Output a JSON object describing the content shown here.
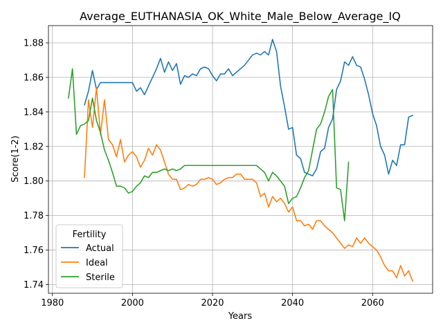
{
  "chart_data": {
    "type": "line",
    "title": "Average_EUTHANASIA_OK_White_Male_Below_Average_IQ",
    "xlabel": "Years",
    "ylabel": "Score(1-2)",
    "xlim": [
      1979,
      2075
    ],
    "ylim": [
      1.735,
      1.89
    ],
    "x_ticks": [
      1980,
      2000,
      2020,
      2040,
      2060
    ],
    "y_ticks": [
      1.74,
      1.76,
      1.78,
      1.8,
      1.82,
      1.84,
      1.86,
      1.88
    ],
    "y_tick_labels": [
      "1.74",
      "1.76",
      "1.78",
      "1.80",
      "1.82",
      "1.84",
      "1.86",
      "1.88"
    ],
    "grid": true,
    "legend": {
      "title": "Fertility",
      "placement": "lower-left"
    },
    "series": [
      {
        "name": "Actual",
        "color": "#1f77b4",
        "x": [
          1988,
          1989,
          1990,
          1991,
          1992,
          1993,
          1994,
          1995,
          1996,
          1997,
          1998,
          1999,
          2000,
          2001,
          2002,
          2003,
          2004,
          2005,
          2006,
          2007,
          2008,
          2009,
          2010,
          2011,
          2012,
          2013,
          2014,
          2015,
          2016,
          2017,
          2018,
          2019,
          2020,
          2021,
          2022,
          2023,
          2024,
          2025,
          2026,
          2027,
          2028,
          2029,
          2030,
          2031,
          2032,
          2033,
          2034,
          2035,
          2036,
          2037,
          2038,
          2039,
          2040,
          2041,
          2042,
          2043,
          2044,
          2045,
          2046,
          2047,
          2048,
          2049,
          2050,
          2051,
          2052,
          2053,
          2054,
          2055,
          2056,
          2057,
          2058,
          2059,
          2060,
          2061,
          2062,
          2063,
          2064,
          2065,
          2066,
          2067,
          2068,
          2069,
          2070
        ],
        "values": [
          1.844,
          1.852,
          1.864,
          1.853,
          1.857,
          1.857,
          1.857,
          1.857,
          1.857,
          1.857,
          1.857,
          1.857,
          1.857,
          1.852,
          1.854,
          1.85,
          1.855,
          1.86,
          1.865,
          1.871,
          1.863,
          1.869,
          1.864,
          1.868,
          1.856,
          1.861,
          1.86,
          1.862,
          1.861,
          1.865,
          1.866,
          1.865,
          1.861,
          1.858,
          1.862,
          1.862,
          1.865,
          1.861,
          1.863,
          1.865,
          1.867,
          1.87,
          1.873,
          1.874,
          1.873,
          1.875,
          1.873,
          1.882,
          1.875,
          1.855,
          1.843,
          1.83,
          1.831,
          1.815,
          1.813,
          1.805,
          1.804,
          1.803,
          1.807,
          1.817,
          1.819,
          1.831,
          1.836,
          1.853,
          1.858,
          1.869,
          1.867,
          1.872,
          1.867,
          1.866,
          1.859,
          1.85,
          1.839,
          1.832,
          1.82,
          1.815,
          1.804,
          1.812,
          1.809,
          1.821,
          1.821,
          1.837,
          1.838
        ]
      },
      {
        "name": "Ideal",
        "color": "#ff7f0e",
        "x": [
          1988,
          1989,
          1990,
          1991,
          1992,
          1993,
          1994,
          1995,
          1996,
          1997,
          1998,
          1999,
          2000,
          2001,
          2002,
          2003,
          2004,
          2005,
          2006,
          2007,
          2008,
          2009,
          2010,
          2011,
          2012,
          2013,
          2014,
          2015,
          2016,
          2017,
          2018,
          2019,
          2020,
          2021,
          2022,
          2023,
          2024,
          2025,
          2026,
          2027,
          2028,
          2029,
          2030,
          2031,
          2032,
          2033,
          2034,
          2035,
          2036,
          2037,
          2038,
          2039,
          2040,
          2041,
          2042,
          2043,
          2044,
          2045,
          2046,
          2047,
          2048,
          2049,
          2050,
          2051,
          2052,
          2053,
          2054,
          2055,
          2056,
          2057,
          2058,
          2059,
          2060,
          2061,
          2062,
          2063,
          2064,
          2065,
          2066,
          2067,
          2068,
          2069,
          2070
        ],
        "values": [
          1.802,
          1.847,
          1.831,
          1.854,
          1.827,
          1.847,
          1.824,
          1.821,
          1.814,
          1.824,
          1.811,
          1.815,
          1.817,
          1.814,
          1.808,
          1.812,
          1.819,
          1.815,
          1.821,
          1.818,
          1.811,
          1.804,
          1.801,
          1.801,
          1.795,
          1.796,
          1.798,
          1.797,
          1.798,
          1.801,
          1.801,
          1.802,
          1.801,
          1.798,
          1.799,
          1.801,
          1.802,
          1.802,
          1.804,
          1.804,
          1.801,
          1.801,
          1.801,
          1.799,
          1.791,
          1.793,
          1.785,
          1.791,
          1.788,
          1.79,
          1.787,
          1.782,
          1.785,
          1.777,
          1.777,
          1.774,
          1.775,
          1.772,
          1.777,
          1.777,
          1.774,
          1.772,
          1.77,
          1.767,
          1.764,
          1.761,
          1.763,
          1.762,
          1.767,
          1.764,
          1.767,
          1.764,
          1.762,
          1.76,
          1.756,
          1.751,
          1.748,
          1.748,
          1.744,
          1.751,
          1.745,
          1.748,
          1.742
        ]
      },
      {
        "name": "Sterile",
        "color": "#2ca02c",
        "x": [
          1984,
          1985,
          1986,
          1987,
          1988,
          1989,
          1990,
          1991,
          1992,
          1993,
          1994,
          1995,
          1996,
          1997,
          1998,
          1999,
          2000,
          2001,
          2002,
          2003,
          2004,
          2005,
          2006,
          2007,
          2008,
          2009,
          2010,
          2011,
          2012,
          2013,
          2014,
          2015,
          2016,
          2017,
          2018,
          2019,
          2020,
          2021,
          2022,
          2023,
          2024,
          2025,
          2026,
          2027,
          2028,
          2029,
          2030,
          2031,
          2032,
          2033,
          2034,
          2035,
          2036,
          2037,
          2038,
          2039,
          2040,
          2041,
          2042,
          2043,
          2044,
          2045,
          2046,
          2047,
          2048,
          2049,
          2050,
          2051,
          2052,
          2053,
          2054
        ],
        "values": [
          1.848,
          1.865,
          1.827,
          1.832,
          1.833,
          1.835,
          1.848,
          1.835,
          1.828,
          1.818,
          1.812,
          1.805,
          1.797,
          1.797,
          1.796,
          1.793,
          1.794,
          1.797,
          1.799,
          1.803,
          1.802,
          1.805,
          1.805,
          1.806,
          1.807,
          1.806,
          1.807,
          1.806,
          1.807,
          1.809,
          1.809,
          1.809,
          1.809,
          1.809,
          1.809,
          1.809,
          1.809,
          1.809,
          1.809,
          1.809,
          1.809,
          1.809,
          1.809,
          1.809,
          1.809,
          1.809,
          1.809,
          1.809,
          1.807,
          1.805,
          1.8,
          1.805,
          1.803,
          1.8,
          1.797,
          1.787,
          1.79,
          1.791,
          1.796,
          1.802,
          1.806,
          1.818,
          1.83,
          1.833,
          1.84,
          1.849,
          1.853,
          1.796,
          1.795,
          1.777,
          1.811
        ]
      }
    ]
  }
}
